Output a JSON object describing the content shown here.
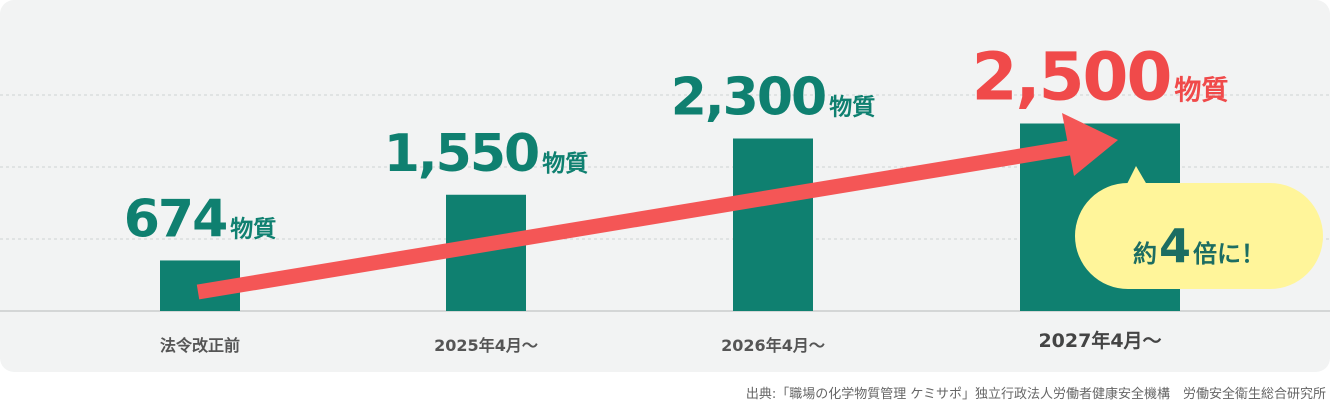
{
  "chart_data": {
    "type": "bar",
    "categories": [
      "法令改正前",
      "2025年4月～",
      "2026年4月～",
      "2027年4月～"
    ],
    "values": [
      674,
      1550,
      2300,
      2500
    ],
    "value_labels": [
      "674",
      "1,550",
      "2,300",
      "2,500"
    ],
    "unit": "物質",
    "color": "#0f8070",
    "label_colors": [
      "#0f8070",
      "#0f8070",
      "#0f8070",
      "#f04a4a"
    ],
    "ylim": [
      0,
      4000
    ],
    "annotation": {
      "prefix": "約",
      "number": 4,
      "suffix": "倍に！"
    },
    "source": "出典:「職場の化学物質管理 ケミサポ」独立行政法人労働者健康安全機構　労働安全衛生総合研究所"
  }
}
